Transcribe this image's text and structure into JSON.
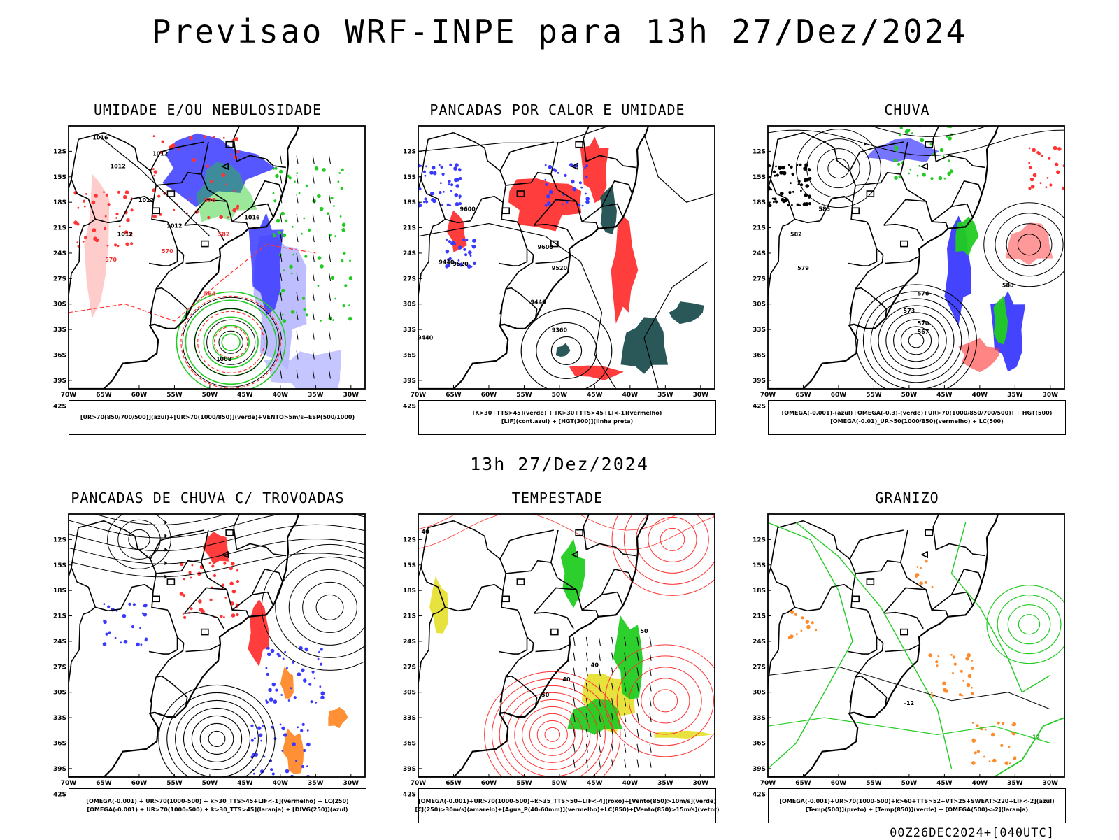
{
  "header": {
    "title": "Previsao WRF-INPE  para 13h 27/Dez/2024"
  },
  "middle": {
    "title": "13h 27/Dez/2024"
  },
  "footer": {
    "run_label": "00Z26DEC2024+[040UTC]"
  },
  "axes": {
    "lat_labels": [
      "12S",
      "15S",
      "18S",
      "21S",
      "24S",
      "27S",
      "30S",
      "33S",
      "36S",
      "39S",
      "42S"
    ],
    "lon_labels": [
      "70W",
      "65W",
      "60W",
      "55W",
      "50W",
      "45W",
      "40W",
      "35W",
      "30W"
    ]
  },
  "colors": {
    "blue": "#3a3aff",
    "green": "#22cc22",
    "red": "#ff3333",
    "darkteal": "#1f4f4f",
    "yellow": "#e6e033",
    "orange": "#ff8a2a",
    "lightblue": "#b7b7ff",
    "purple": "#a040a0"
  },
  "chart_data": [
    {
      "type": "map",
      "title": "UMIDADE E/OU NEBULOSIDADE",
      "legend": [
        "[UR>70(850/700/500)](azul)+[UR>70(1000/850)](verde)+VENTO>5m/s+ESP(500/1000)"
      ],
      "contour_labels": [
        "1012",
        "1012",
        "1012",
        "1012",
        "1012",
        "1016",
        "1016",
        "1008",
        "570",
        "576",
        "570",
        "582",
        "564"
      ]
    },
    {
      "type": "map",
      "title": "PANCADAS POR CALOR E UMIDADE",
      "legend": [
        "[K>30+TTS>45](verde)  +  [K>30+TTS>45+LI<-1](vermelho)",
        "[LIF](cont.azul)  +  [HGT(300)](linha preta)"
      ],
      "contour_labels": [
        "9600",
        "9600",
        "9520",
        "9520",
        "9440",
        "9440",
        "9360",
        "9440"
      ]
    },
    {
      "type": "map",
      "title": "CHUVA",
      "legend": [
        "[OMEGA(-0.001)-(azul)+OMEGA(-0.3)-(verde)+UR>70(1000/850/700/500)]  +  HGT(500)",
        "[OMEGA(-0.01)_UR>50(1000/850)(vermelho)  +  LC(500)"
      ],
      "contour_labels": [
        "585",
        "582",
        "579",
        "576",
        "573",
        "570",
        "567",
        "588"
      ]
    },
    {
      "type": "map",
      "title": "PANCADAS DE CHUVA C/ TROVOADAS",
      "legend": [
        "[OMEGA(-0.001)  +  UR>70(1000-500)  +  k>30_TTS>45+LIF<-1](vermelho)  +  LC(250)",
        "[OMEGA(-0.001)  +  UR>70(1000-500)  +  k>30_TTS>45](laranja)  +  [DIVG(250)](azul)"
      ],
      "contour_labels": []
    },
    {
      "type": "map",
      "title": "TEMPESTADE",
      "legend": [
        "[OMEGA(-0.001)+UR>70(1000-500)+k>35_TTS>50+LIF<-4](roxo)+[Vento(850)>10m/s](verde)",
        "[CJ(250)>30m/s](amarelo)+[Agua_P(40-60mm)](vermelho)+LC(850)+[Vento(850)>15m/s](vetor)"
      ],
      "contour_labels": [
        "40",
        "40",
        "50",
        "50",
        "40"
      ]
    },
    {
      "type": "map",
      "title": "GRANIZO",
      "legend": [
        "[OMEGA(-0.001)+UR>70(1000-500)+k>60+TTS>52+VT>25+SWEAT>220+LIF<-2](azul)",
        "[Temp(500)](preto)  +  [Temp(850)](verde)  +  [OMEGA(500)<-2](laranja)"
      ],
      "contour_labels": [
        "-12",
        "12"
      ]
    }
  ]
}
